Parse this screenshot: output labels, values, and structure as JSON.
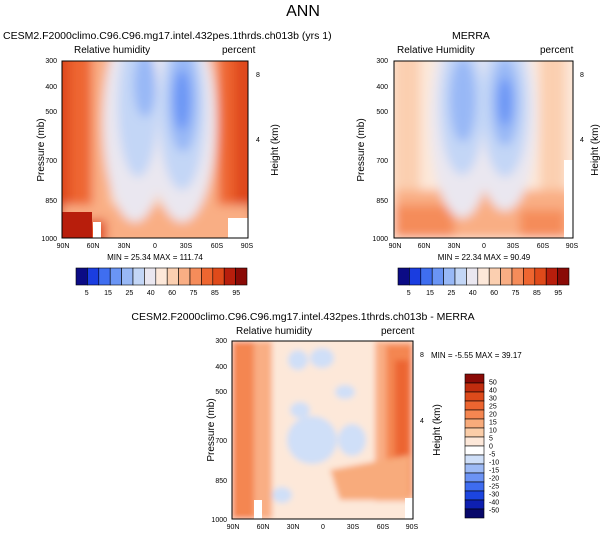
{
  "page_title": "ANN",
  "colors": {
    "panel_scale": [
      "#0b0b85",
      "#1a3de0",
      "#3f6ef0",
      "#6a95f5",
      "#98b8f6",
      "#c3d6f6",
      "#eae7f0",
      "#fde8d9",
      "#fbcfb0",
      "#f9ae84",
      "#f58c5a",
      "#ee6630",
      "#df4a1a",
      "#b81e0c",
      "#8a0a06"
    ],
    "diff_scale": [
      "#08086a",
      "#0e1fb0",
      "#1c45e0",
      "#3e6cf0",
      "#6c93f4",
      "#9dbaf5",
      "#cfdff8",
      "#ffffff",
      "#fde8d9",
      "#fbcda8",
      "#f8ab7b",
      "#f48651",
      "#ec6530",
      "#dd4a1b",
      "#c02c0e",
      "#8a0a06"
    ]
  },
  "chart_data": [
    {
      "type": "heatmap",
      "title": "CESM2.F2000climo.C96.C96.mg17.intel.432pes.1thrds.ch013b (yrs 1)",
      "left_label": "Relative humidity",
      "right_label": "percent",
      "ylabel": "Pressure (mb)",
      "ylabel_right": "Height (km)",
      "x_ticks": [
        "90N",
        "60N",
        "30N",
        "0",
        "30S",
        "60S",
        "90S"
      ],
      "y_ticks": [
        "300",
        "400",
        "500",
        "700",
        "850",
        "1000"
      ],
      "y_ticks_right": [
        "8",
        "4"
      ],
      "stats_text": "MIN = 25.34   MAX = 111.74",
      "min": 25.34,
      "max": 111.74,
      "colorbar_labels": [
        "5",
        "15",
        "25",
        "40",
        "60",
        "75",
        "85",
        "95"
      ]
    },
    {
      "type": "heatmap",
      "title": "MERRA",
      "left_label": "Relative Humidity",
      "right_label": "percent",
      "ylabel": "Pressure (mb)",
      "ylabel_right": "Height (km)",
      "x_ticks": [
        "90N",
        "60N",
        "30N",
        "0",
        "30S",
        "60S",
        "90S"
      ],
      "y_ticks": [
        "300",
        "400",
        "500",
        "700",
        "850",
        "1000"
      ],
      "y_ticks_right": [
        "8",
        "4"
      ],
      "stats_text": "MIN = 22.34   MAX = 90.49",
      "min": 22.34,
      "max": 90.49,
      "colorbar_labels": [
        "5",
        "15",
        "25",
        "40",
        "60",
        "75",
        "85",
        "95"
      ]
    },
    {
      "type": "heatmap",
      "title": "CESM2.F2000climo.C96.C96.mg17.intel.432pes.1thrds.ch013b - MERRA",
      "left_label": "Relative humidity",
      "right_label": "percent",
      "ylabel": "Pressure (mb)",
      "ylabel_right": "Height (km)",
      "x_ticks": [
        "90N",
        "60N",
        "30N",
        "0",
        "30S",
        "60S",
        "90S"
      ],
      "y_ticks": [
        "300",
        "400",
        "500",
        "700",
        "850",
        "1000"
      ],
      "y_ticks_right": [
        "8",
        "4"
      ],
      "stats_text": "MIN = -5.55   MAX = 39.17",
      "min": -5.55,
      "max": 39.17,
      "colorbar_labels": [
        "50",
        "40",
        "30",
        "25",
        "20",
        "15",
        "10",
        "5",
        "0",
        "-5",
        "-10",
        "-15",
        "-20",
        "-25",
        "-30",
        "-40",
        "-50"
      ]
    }
  ]
}
